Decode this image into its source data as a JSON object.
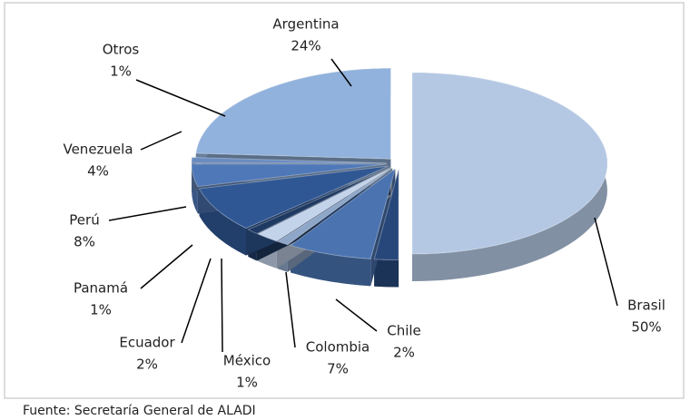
{
  "chart_data": {
    "type": "pie",
    "categories": [
      "Brasil",
      "Chile",
      "Colombia",
      "México",
      "Ecuador",
      "Panamá",
      "Perú",
      "Venezuela",
      "Otros",
      "Argentina"
    ],
    "values": [
      50,
      2,
      7,
      1,
      2,
      1,
      8,
      4,
      1,
      24
    ],
    "value_labels": [
      "50%",
      "2%",
      "7%",
      "1%",
      "2%",
      "1%",
      "8%",
      "4%",
      "1%",
      "24%"
    ],
    "colors": [
      "#b4c8e4",
      "#27477a",
      "#4a73b0",
      "#8ea6c8",
      "#c3d3ea",
      "#1f3a62",
      "#2f5794",
      "#4f78b8",
      "#6a8cc0",
      "#91b2dc"
    ],
    "source": "Fuente: Secretaría General de ALADI"
  }
}
